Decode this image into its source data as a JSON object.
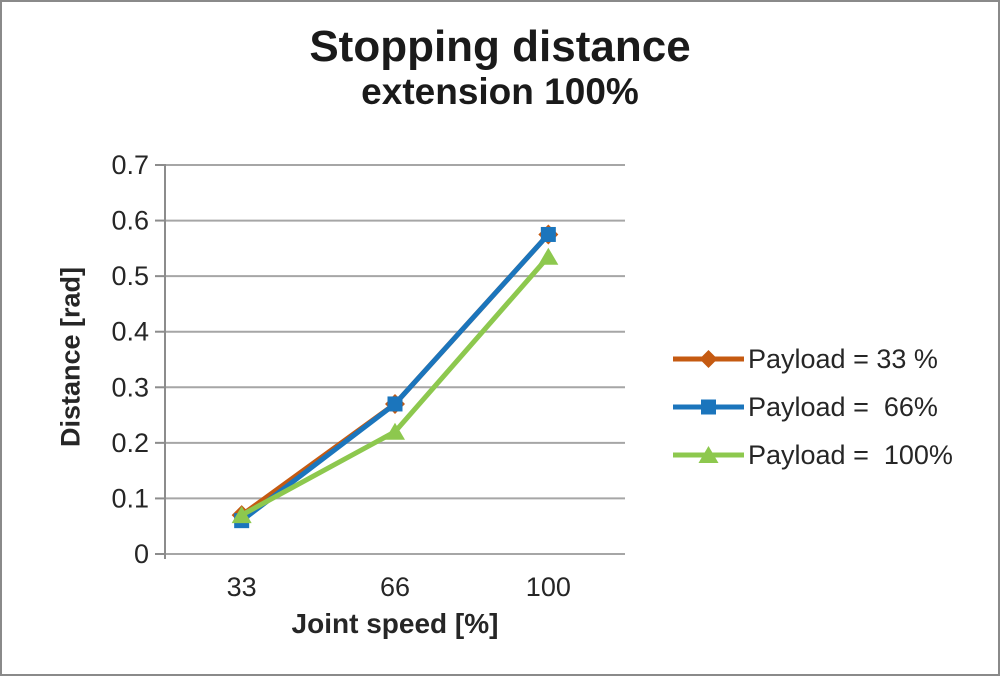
{
  "title": "Stopping distance",
  "subtitle": "extension 100%",
  "chart_data": {
    "type": "line",
    "categories": [
      "33",
      "66",
      "100"
    ],
    "x_values": [
      33,
      66,
      100
    ],
    "series": [
      {
        "name": "Payload = 33 %",
        "values": [
          0.07,
          0.27,
          0.575
        ],
        "color": "#C55A11",
        "marker": "diamond"
      },
      {
        "name": "Payload =  66%",
        "values": [
          0.06,
          0.27,
          0.575
        ],
        "color": "#1B75BC",
        "marker": "square"
      },
      {
        "name": "Payload =  100%",
        "values": [
          0.07,
          0.22,
          0.535
        ],
        "color": "#8DC84E",
        "marker": "triangle"
      }
    ],
    "xlabel": "Joint speed [%]",
    "ylabel": "Distance [rad]",
    "ylim": [
      0,
      0.7
    ],
    "yticks": [
      "0",
      "0.1",
      "0.2",
      "0.3",
      "0.4",
      "0.5",
      "0.6",
      "0.7"
    ],
    "grid": "horizontal",
    "legend_position": "right",
    "line_width": 5
  },
  "style": {
    "grid_color": "#A6A6A6",
    "axis_color": "#8C8C8C",
    "tick_text_color": "#262626",
    "title_color": "#1a1a1a",
    "background": "#ffffff",
    "frame_border": "#8a8a8a"
  }
}
